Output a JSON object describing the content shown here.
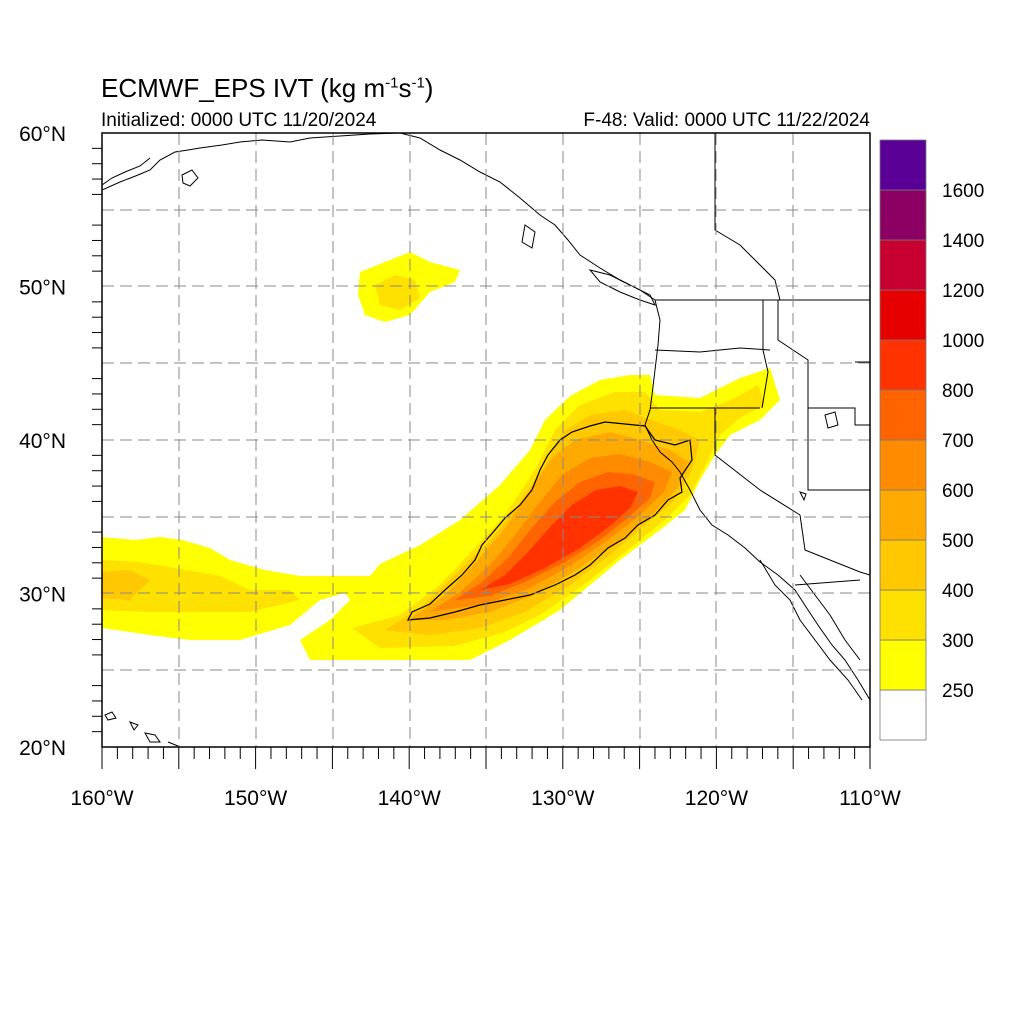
{
  "header": {
    "title_main": "ECMWF_EPS IVT (kg m",
    "title_exp1": "-1",
    "title_mid": "s",
    "title_exp2": "-1",
    "title_end": ")",
    "initialized": "Initialized: 0000 UTC 11/20/2024",
    "valid": "F-48: Valid: 0000 UTC 11/22/2024"
  },
  "map": {
    "lon_range": [
      -160,
      -110
    ],
    "lat_range": [
      20,
      60
    ],
    "lon_labels": [
      "160°W",
      "150°W",
      "140°W",
      "130°W",
      "120°W",
      "110°W"
    ],
    "lat_labels": [
      "60°N",
      "50°N",
      "40°N",
      "30°N",
      "20°N"
    ],
    "grid": "dashed every 5°"
  },
  "colorbar": {
    "levels": [
      250,
      300,
      400,
      500,
      600,
      700,
      800,
      1000,
      1200,
      1400,
      1600
    ],
    "labels": [
      "250",
      "300",
      "400",
      "500",
      "600",
      "700",
      "800",
      "1000",
      "1200",
      "1400",
      "1600"
    ],
    "colors": [
      "#ffffff",
      "#ffff00",
      "#ffe100",
      "#ffc800",
      "#ffaa00",
      "#ff8c00",
      "#ff6400",
      "#ff3200",
      "#e60000",
      "#c80032",
      "#8c0064",
      "#5a0096"
    ]
  }
}
